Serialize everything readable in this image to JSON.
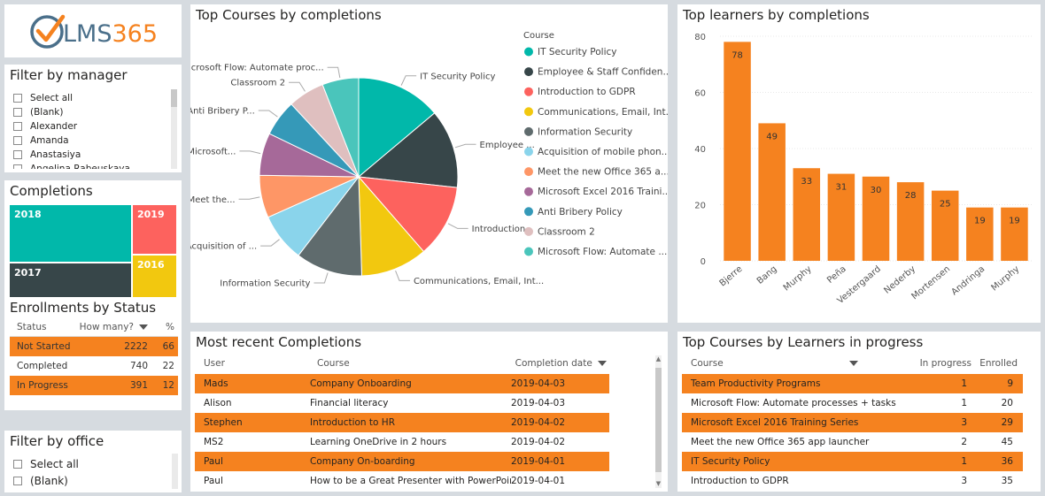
{
  "logo": {
    "text": "LMS365",
    "accent": "#f5821f",
    "text_color": "#4a6f8a"
  },
  "manager_filter": {
    "title": "Filter by manager",
    "items": [
      "Select all",
      "(Blank)",
      "Alexander",
      "Amanda",
      "Anastasiya",
      "Angelina Rabeuskaya"
    ]
  },
  "completions": {
    "title": "Completions",
    "years": [
      {
        "label": "2018",
        "color": "#01b8aa"
      },
      {
        "label": "2019",
        "color": "#fd625e"
      },
      {
        "label": "2017",
        "color": "#374649"
      },
      {
        "label": "2016",
        "color": "#f2c80f"
      }
    ]
  },
  "enrollments": {
    "title": "Enrollments by Status",
    "headers": {
      "status": "Status",
      "howmany": "How many?",
      "pct": "%"
    },
    "rows": [
      {
        "status": "Not Started",
        "count": "2222",
        "pct": "66"
      },
      {
        "status": "Completed",
        "count": "740",
        "pct": "22"
      },
      {
        "status": "In Progress",
        "count": "391",
        "pct": "12"
      }
    ]
  },
  "office_filter": {
    "title": "Filter by office",
    "items": [
      "Select all",
      "(Blank)"
    ]
  },
  "top_courses": {
    "title": "Top Courses by completions",
    "legend_title": "Course"
  },
  "chart_data": [
    {
      "type": "pie",
      "title": "Top Courses by completions",
      "legend_title": "Course",
      "slices": [
        {
          "name": "IT Security Policy",
          "label": "IT Security Policy",
          "value": 14,
          "color": "#01b8aa"
        },
        {
          "name": "Employee & Staff Confiden...",
          "label": "Employee ...",
          "value": 13,
          "color": "#374649"
        },
        {
          "name": "Introduction to GDPR",
          "label": "Introduction...",
          "value": 12,
          "color": "#fd625e"
        },
        {
          "name": "Communications, Email, Int...",
          "label": "Communications, Email, Int...",
          "value": 11,
          "color": "#f2c80f"
        },
        {
          "name": "Information Security",
          "label": "Information Security",
          "value": 11,
          "color": "#5f6b6d"
        },
        {
          "name": "Acquisition of mobile phon...",
          "label": "Acquisition of ...",
          "value": 8,
          "color": "#8ad4eb"
        },
        {
          "name": "Meet the new Office 365 a...",
          "label": "Meet the...",
          "value": 7,
          "color": "#fe9666"
        },
        {
          "name": "Microsoft Excel 2016 Traini...",
          "label": "Microsoft...",
          "value": 7,
          "color": "#a66999"
        },
        {
          "name": "Anti Bribery Policy",
          "label": "Anti Bribery P...",
          "value": 6,
          "color": "#3599b8"
        },
        {
          "name": "Classroom 2",
          "label": "Classroom 2",
          "value": 6,
          "color": "#dfbfbf"
        },
        {
          "name": "Microsoft Flow: Automate ...",
          "label": "Microsoft Flow: Automate proc...",
          "value": 6,
          "color": "#4ac5bb"
        }
      ]
    },
    {
      "type": "bar",
      "title": "Top learners by completions",
      "categories": [
        "Bjerre",
        "Bang",
        "Murphy",
        "Peña",
        "Vestergaard",
        "Nederby",
        "Mortensen",
        "Andringa",
        "Murphy"
      ],
      "values": [
        78,
        49,
        33,
        31,
        30,
        28,
        25,
        19,
        19
      ],
      "yticks": [
        "0",
        "20",
        "40",
        "60",
        "80"
      ],
      "ylim": [
        0,
        80
      ],
      "color": "#f5821f"
    }
  ],
  "top_learners": {
    "title": "Top learners by completions"
  },
  "recent": {
    "title": "Most recent Completions",
    "headers": {
      "user": "User",
      "course": "Course",
      "date": "Completion date"
    },
    "rows": [
      {
        "user": "Mads",
        "course": "Company Onboarding",
        "date": "2019-04-03"
      },
      {
        "user": "Alison",
        "course": "Financial literacy",
        "date": "2019-04-03"
      },
      {
        "user": "Stephen",
        "course": "Introduction to HR",
        "date": "2019-04-02"
      },
      {
        "user": "MS2",
        "course": "Learning OneDrive in 2 hours",
        "date": "2019-04-02"
      },
      {
        "user": "Paul",
        "course": "Company On-boarding",
        "date": "2019-04-01"
      },
      {
        "user": "Paul",
        "course": "How to be a Great Presenter with PowerPoint",
        "date": "2019-04-01"
      }
    ]
  },
  "progress": {
    "title": "Top Courses by Learners in progress",
    "headers": {
      "course": "Course",
      "inprogress": "In progress",
      "enrolled": "Enrolled"
    },
    "rows": [
      {
        "course": "Team Productivity Programs",
        "inprogress": "1",
        "enrolled": "9"
      },
      {
        "course": "Microsoft Flow: Automate processes + tasks",
        "inprogress": "1",
        "enrolled": "20"
      },
      {
        "course": "Microsoft Excel 2016 Training Series",
        "inprogress": "3",
        "enrolled": "29"
      },
      {
        "course": "Meet the new Office 365 app launcher",
        "inprogress": "2",
        "enrolled": "45"
      },
      {
        "course": "IT Security Policy",
        "inprogress": "1",
        "enrolled": "36"
      },
      {
        "course": "Introduction to GDPR",
        "inprogress": "3",
        "enrolled": "35"
      }
    ]
  },
  "colors": {
    "highlight": "#f5821f",
    "teal": "#01b8aa"
  }
}
